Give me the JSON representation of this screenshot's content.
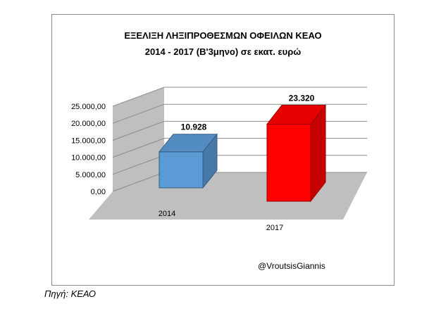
{
  "chart_data": {
    "type": "bar",
    "title_lines": [
      "ΕΞΕΛΙΞΗ ΛΗΞΙΠΡΟΘΕΣΜΩΝ ΟΦΕΙΛΩΝ ΚΕΑΟ",
      "2014 - 2017 (Β'3μηνο) σε εκατ. ευρώ"
    ],
    "categories": [
      "2014",
      "2017"
    ],
    "values": [
      10928,
      23320
    ],
    "value_labels": [
      "10.928",
      "23.320"
    ],
    "bar_colors": [
      "#5b9bd5",
      "#ff0000"
    ],
    "y_ticks": [
      "0,00",
      "5.000,00",
      "10.000,00",
      "15.000,00",
      "20.000,00",
      "25.000,00"
    ],
    "ylim": [
      0,
      25000
    ],
    "grid": true,
    "legend": "none",
    "xlabel": "",
    "ylabel": "",
    "watermark": "@VroutsisGiannis"
  },
  "source_note": "Πηγή: ΚΕΑΟ"
}
